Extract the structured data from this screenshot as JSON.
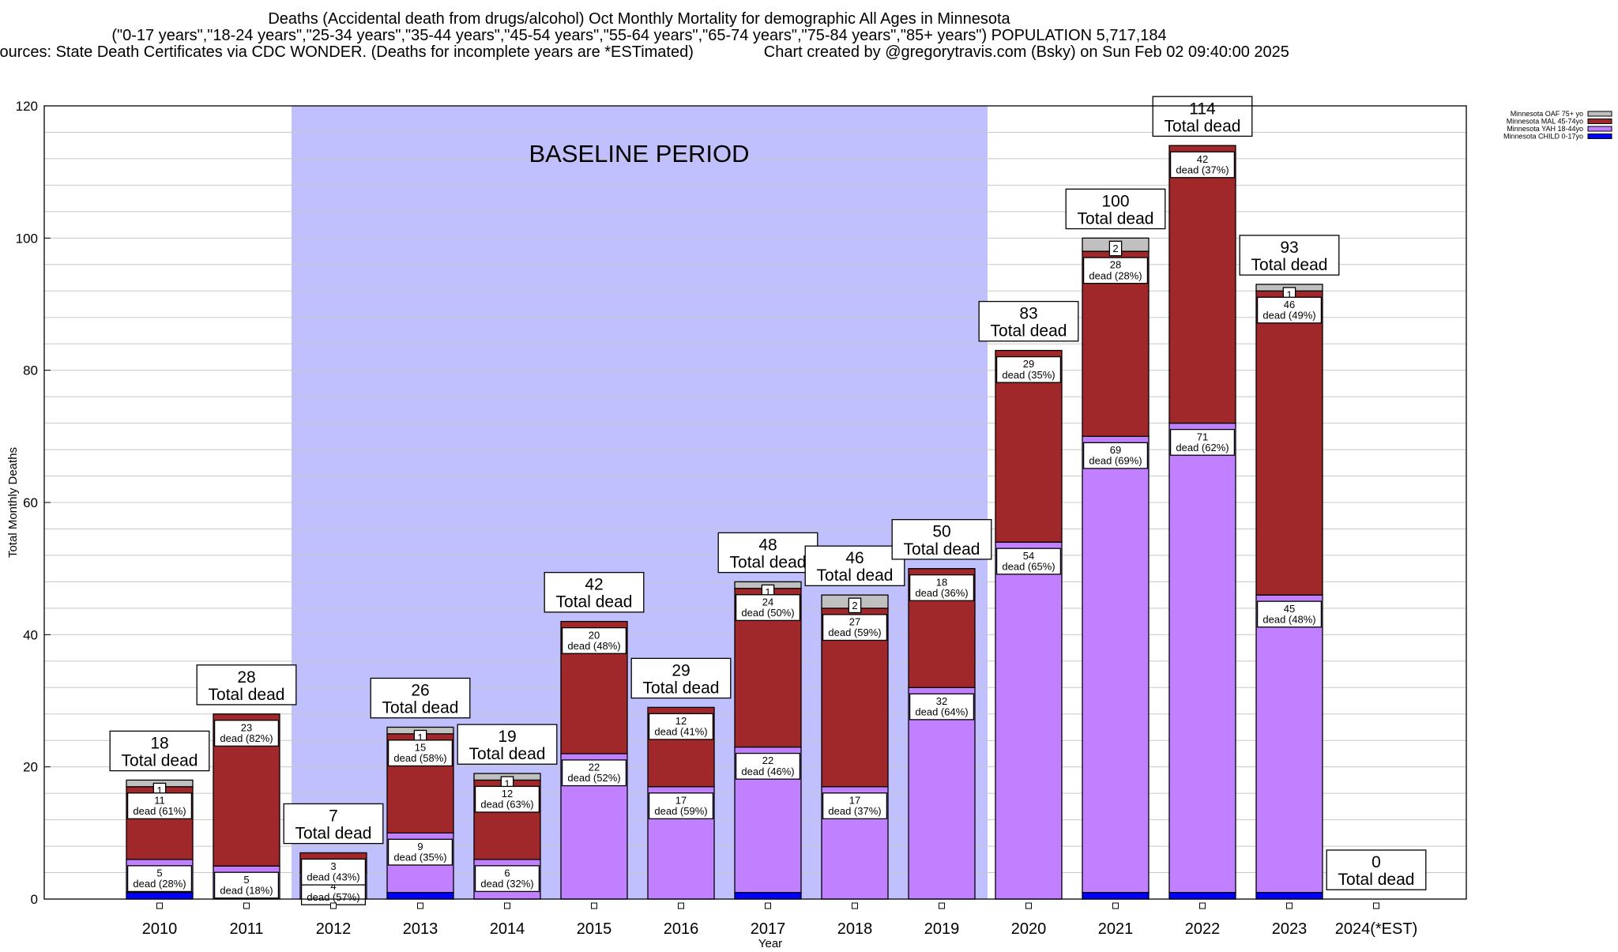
{
  "chart_data": {
    "type": "bar",
    "stacked": true,
    "title_lines": [
      "Deaths (Accidental death from drugs/alcohol) Oct Monthly Mortality for demographic All Ages in Minnesota",
      "(\"0-17 years\",\"18-24 years\",\"25-34 years\",\"35-44 years\",\"45-54 years\",\"55-64 years\",\"65-74 years\",\"75-84 years\",\"85+ years\") POPULATION 5,717,184",
      "Sources: State Death Certificates via CDC WONDER. (Deaths for incomplete years are *ESTimated)                Chart created by @gregorytravis.com (Bsky) on Sun Feb 02 09:40:00 2025"
    ],
    "xlabel": "Year",
    "ylabel": "Total Monthly Deaths",
    "ylim": [
      0,
      120
    ],
    "yticks": [
      0,
      20,
      40,
      60,
      80,
      100,
      120
    ],
    "grid": true,
    "legend_position": "top-right, outside",
    "annotation": "BASELINE PERIOD",
    "baseline_period": [
      "2012",
      "2019"
    ],
    "baseline_color": "#c0c0ff",
    "total_label": "Total dead",
    "segment_label": "dead",
    "categories": [
      "2010",
      "2011",
      "2012",
      "2013",
      "2014",
      "2015",
      "2016",
      "2017",
      "2018",
      "2019",
      "2020",
      "2021",
      "2022",
      "2023",
      "2024(*EST)"
    ],
    "totals": [
      18,
      28,
      7,
      26,
      19,
      42,
      29,
      48,
      46,
      50,
      83,
      100,
      114,
      93,
      0
    ],
    "series": [
      {
        "name": "Minnesota CHILD 0-17yo",
        "color": "#0000ff",
        "values": [
          1,
          0,
          0,
          1,
          0,
          0,
          0,
          1,
          0,
          0,
          0,
          1,
          1,
          1,
          0
        ],
        "labeled": false
      },
      {
        "name": "Minnesota YAH 18-44yo",
        "color": "#c080ff",
        "values": [
          5,
          5,
          4,
          9,
          6,
          22,
          17,
          22,
          17,
          32,
          54,
          69,
          71,
          45,
          0
        ],
        "labeled": true
      },
      {
        "name": "Minnesota MAL 45-74yo",
        "color": "#a0282a",
        "values": [
          11,
          23,
          3,
          15,
          12,
          20,
          12,
          24,
          27,
          18,
          29,
          28,
          42,
          46,
          0
        ],
        "labeled": true
      },
      {
        "name": "Minnesota OAF 75+ yo",
        "color": "#c0c0c0",
        "values": [
          1,
          0,
          0,
          1,
          1,
          0,
          0,
          1,
          2,
          0,
          0,
          2,
          0,
          1,
          0
        ],
        "labeled": true
      }
    ]
  }
}
